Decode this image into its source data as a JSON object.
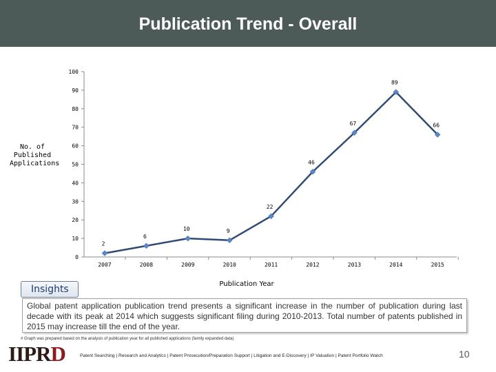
{
  "header": {
    "title": "Publication Trend - Overall"
  },
  "colors": {
    "header_bg": "#4d5b58",
    "line": "#2f4b75",
    "marker": "#5b87c2"
  },
  "chart_data": {
    "type": "line",
    "title": "",
    "xlabel": "Publication Year",
    "ylabel": "No. of Published Applications",
    "x": [
      "2007",
      "2008",
      "2009",
      "2010",
      "2011",
      "2012",
      "2013",
      "2014",
      "2015"
    ],
    "series": [
      {
        "values": [
          2,
          6,
          10,
          9,
          22,
          46,
          67,
          89,
          66
        ]
      }
    ],
    "ylim": [
      0,
      100
    ],
    "yticks": [
      0,
      10,
      20,
      30,
      40,
      50,
      60,
      70,
      80,
      90,
      100
    ],
    "grid": false,
    "legend": "none"
  },
  "insights": {
    "label": "Insights",
    "text": "Global patent application publication trend presents a significant increase in the number of publication during last decade with its peak at 2014 which suggests significant filing during 2010-2013. Total number of patents published in 2015 may increase till the end of the year."
  },
  "footnote": "# Graph was prepared based on the analysis of publication year for all published applications (family expanded data)",
  "logo": {
    "text_main": "IIPR",
    "text_accent": "D"
  },
  "footer": {
    "services": "Patent Searching | Research and Analytics | Patent Prosecution/Preparation Support | Litigation and E-Discovery | IP Valuation |  Patent Portfolio Watch",
    "page_number": "10"
  }
}
